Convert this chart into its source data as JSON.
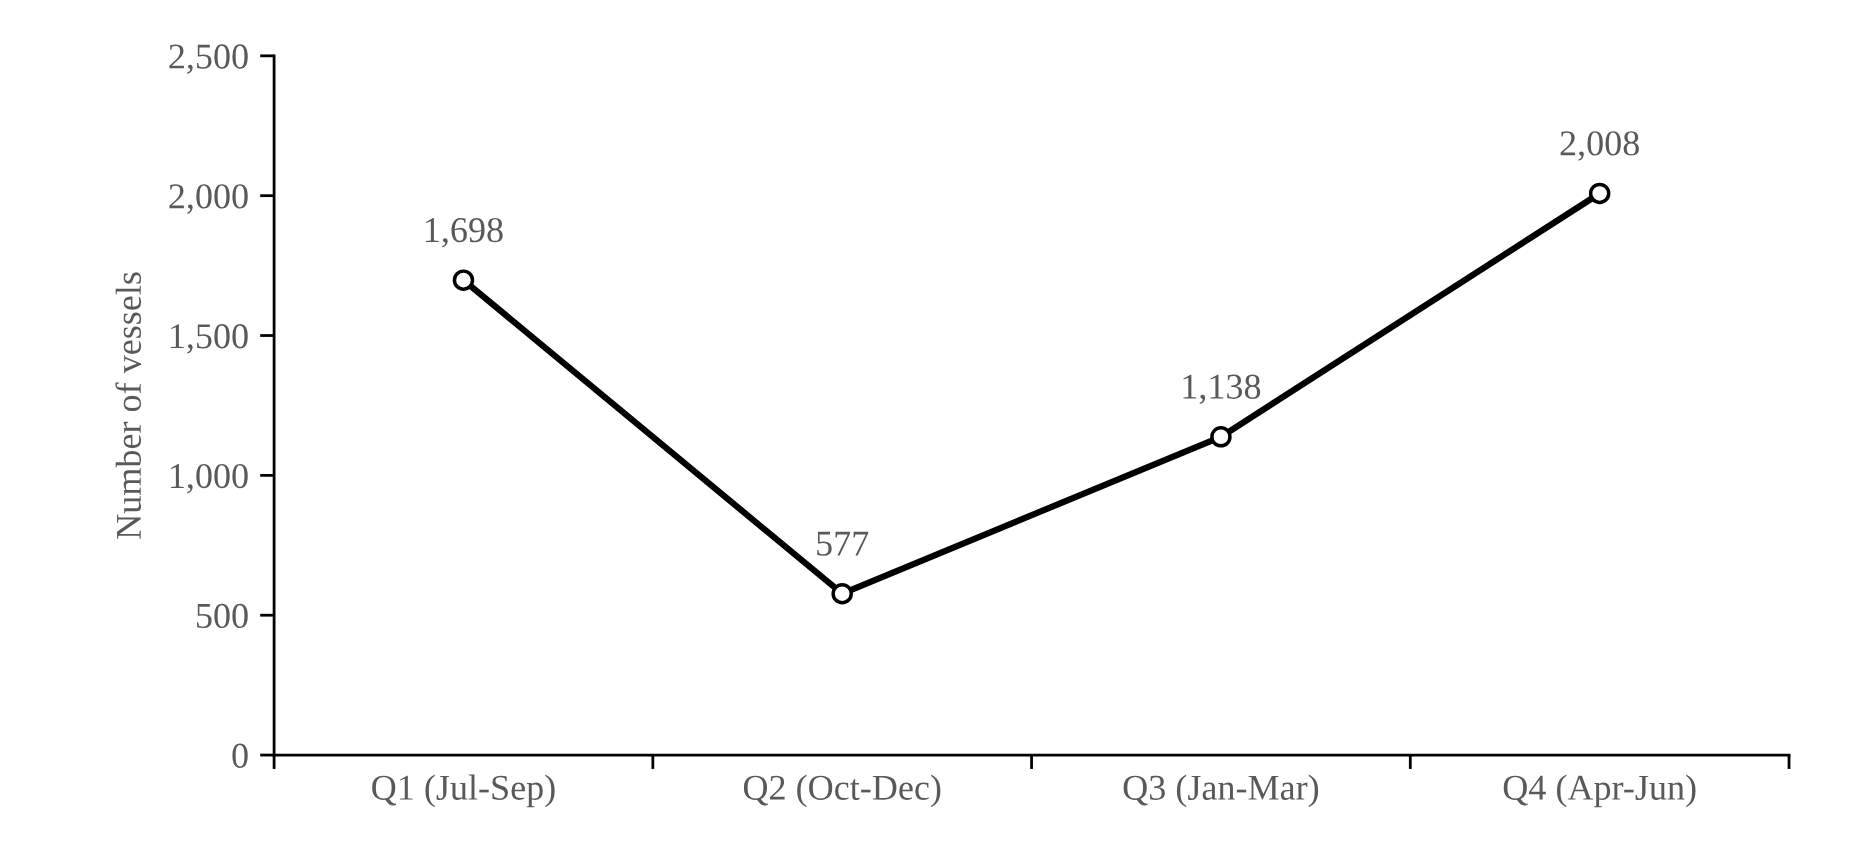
{
  "chart_data": {
    "type": "line",
    "ylabel": "Number of vessels",
    "categories": [
      "Q1 (Jul-Sep)",
      "Q2 (Oct-Dec)",
      "Q3 (Jan-Mar)",
      "Q4 (Apr-Jun)"
    ],
    "series": [
      {
        "color": "#000000",
        "values": [
          1698,
          577,
          1138,
          2008
        ]
      }
    ],
    "ylim": [
      0,
      2500
    ],
    "yticks": [
      {
        "value": 0,
        "label": "0"
      },
      {
        "value": 500,
        "label": "500"
      },
      {
        "value": 1000,
        "label": "1,000"
      },
      {
        "value": 1500,
        "label": "1,500"
      },
      {
        "value": 2000,
        "label": "2,000"
      },
      {
        "value": 2500,
        "label": "2,500"
      }
    ],
    "value_labels": [
      "1,698",
      "577",
      "1,138",
      "2,008"
    ],
    "marker": "circle",
    "line_style": "solid",
    "grid": false,
    "legend": false
  }
}
